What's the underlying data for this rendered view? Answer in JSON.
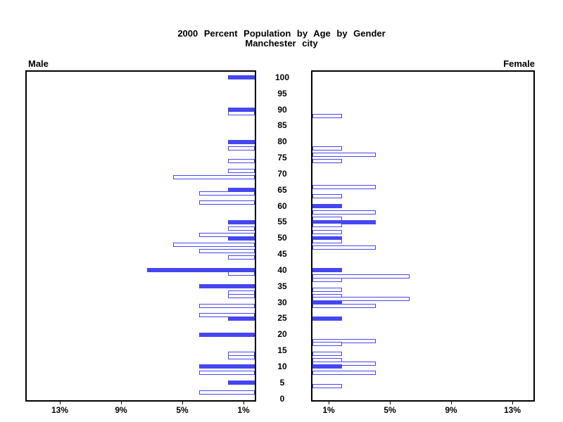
{
  "title": {
    "line1": "2000 Percent Population by Age by Gender",
    "line2": "Manchester city"
  },
  "panel_labels": {
    "male": "Male",
    "female": "Female"
  },
  "colors": {
    "bar_blue": "#4646f2",
    "axis_black": "#000000",
    "background": "#ffffff"
  },
  "chart_data": {
    "type": "bar",
    "variant": "population-pyramid",
    "title": "2000 Percent Population by Age by Gender",
    "subtitle": "Manchester city",
    "left_panel_label": "Male",
    "right_panel_label": "Female",
    "x_axis": {
      "tick_values": [
        1,
        5,
        9,
        13
      ],
      "tick_labels": [
        "1%",
        "5%",
        "9%",
        "13%"
      ],
      "range_pct": [
        0,
        15
      ],
      "male_axis_direction": "reversed",
      "grid": false
    },
    "age_axis": {
      "tick_labels": [
        100,
        95,
        90,
        85,
        80,
        75,
        70,
        65,
        60,
        55,
        50,
        45,
        40,
        35,
        30,
        25,
        20,
        15,
        10,
        5,
        0
      ],
      "range_years": [
        0,
        102
      ],
      "position": "center"
    },
    "bar_encoding": {
      "filled": "solid blue",
      "outlined": "white fill with blue border"
    },
    "male_bars": [
      {
        "age": 100,
        "pct": 2.0,
        "filled": true
      },
      {
        "age": 90,
        "pct": 2.0,
        "filled": true
      },
      {
        "age": 89,
        "pct": 2.0,
        "filled": false
      },
      {
        "age": 80,
        "pct": 2.0,
        "filled": true
      },
      {
        "age": 78,
        "pct": 2.0,
        "filled": false
      },
      {
        "age": 74,
        "pct": 2.0,
        "filled": false
      },
      {
        "age": 71,
        "pct": 2.0,
        "filled": false
      },
      {
        "age": 69,
        "pct": 5.6,
        "filled": false
      },
      {
        "age": 65,
        "pct": 2.0,
        "filled": true
      },
      {
        "age": 64,
        "pct": 3.9,
        "filled": false
      },
      {
        "age": 61,
        "pct": 3.9,
        "filled": false
      },
      {
        "age": 55,
        "pct": 2.0,
        "filled": true
      },
      {
        "age": 53,
        "pct": 2.0,
        "filled": false
      },
      {
        "age": 51,
        "pct": 3.9,
        "filled": false
      },
      {
        "age": 50,
        "pct": 2.0,
        "filled": true
      },
      {
        "age": 48,
        "pct": 5.6,
        "filled": false
      },
      {
        "age": 46,
        "pct": 3.9,
        "filled": false
      },
      {
        "age": 44,
        "pct": 2.0,
        "filled": false
      },
      {
        "age": 40,
        "pct": 7.3,
        "filled": true
      },
      {
        "age": 39,
        "pct": 2.0,
        "filled": false
      },
      {
        "age": 35,
        "pct": 3.9,
        "filled": true
      },
      {
        "age": 33,
        "pct": 2.0,
        "filled": false
      },
      {
        "age": 32,
        "pct": 2.0,
        "filled": false
      },
      {
        "age": 29,
        "pct": 3.9,
        "filled": false
      },
      {
        "age": 26,
        "pct": 3.9,
        "filled": false
      },
      {
        "age": 25,
        "pct": 2.0,
        "filled": true
      },
      {
        "age": 20,
        "pct": 3.9,
        "filled": true
      },
      {
        "age": 14,
        "pct": 2.0,
        "filled": false
      },
      {
        "age": 13,
        "pct": 2.0,
        "filled": false
      },
      {
        "age": 10,
        "pct": 3.9,
        "filled": true
      },
      {
        "age": 8,
        "pct": 3.9,
        "filled": false
      },
      {
        "age": 5,
        "pct": 2.0,
        "filled": true
      },
      {
        "age": 2,
        "pct": 3.9,
        "filled": false
      }
    ],
    "female_bars": [
      {
        "age": 88,
        "pct": 2.2,
        "filled": false
      },
      {
        "age": 78,
        "pct": 2.2,
        "filled": false
      },
      {
        "age": 76,
        "pct": 4.4,
        "filled": false
      },
      {
        "age": 74,
        "pct": 2.2,
        "filled": false
      },
      {
        "age": 66,
        "pct": 4.4,
        "filled": false
      },
      {
        "age": 63,
        "pct": 2.2,
        "filled": false
      },
      {
        "age": 60,
        "pct": 2.2,
        "filled": true
      },
      {
        "age": 58,
        "pct": 4.4,
        "filled": false
      },
      {
        "age": 56,
        "pct": 2.2,
        "filled": false
      },
      {
        "age": 55,
        "pct": 4.4,
        "filled": true
      },
      {
        "age": 54,
        "pct": 2.2,
        "filled": false
      },
      {
        "age": 52,
        "pct": 2.2,
        "filled": false
      },
      {
        "age": 50,
        "pct": 2.2,
        "filled": true
      },
      {
        "age": 49,
        "pct": 2.2,
        "filled": false
      },
      {
        "age": 47,
        "pct": 4.4,
        "filled": false
      },
      {
        "age": 40,
        "pct": 2.2,
        "filled": true
      },
      {
        "age": 38,
        "pct": 6.6,
        "filled": false
      },
      {
        "age": 37,
        "pct": 2.2,
        "filled": false
      },
      {
        "age": 34,
        "pct": 2.2,
        "filled": false
      },
      {
        "age": 32,
        "pct": 2.2,
        "filled": false
      },
      {
        "age": 31,
        "pct": 6.6,
        "filled": false
      },
      {
        "age": 30,
        "pct": 2.2,
        "filled": true
      },
      {
        "age": 29,
        "pct": 4.4,
        "filled": false
      },
      {
        "age": 25,
        "pct": 2.2,
        "filled": true
      },
      {
        "age": 18,
        "pct": 4.4,
        "filled": false
      },
      {
        "age": 17,
        "pct": 2.2,
        "filled": false
      },
      {
        "age": 14,
        "pct": 2.2,
        "filled": false
      },
      {
        "age": 12,
        "pct": 2.2,
        "filled": false
      },
      {
        "age": 11,
        "pct": 4.4,
        "filled": false
      },
      {
        "age": 10,
        "pct": 2.2,
        "filled": true
      },
      {
        "age": 8,
        "pct": 4.4,
        "filled": false
      },
      {
        "age": 4,
        "pct": 2.2,
        "filled": false
      }
    ]
  }
}
